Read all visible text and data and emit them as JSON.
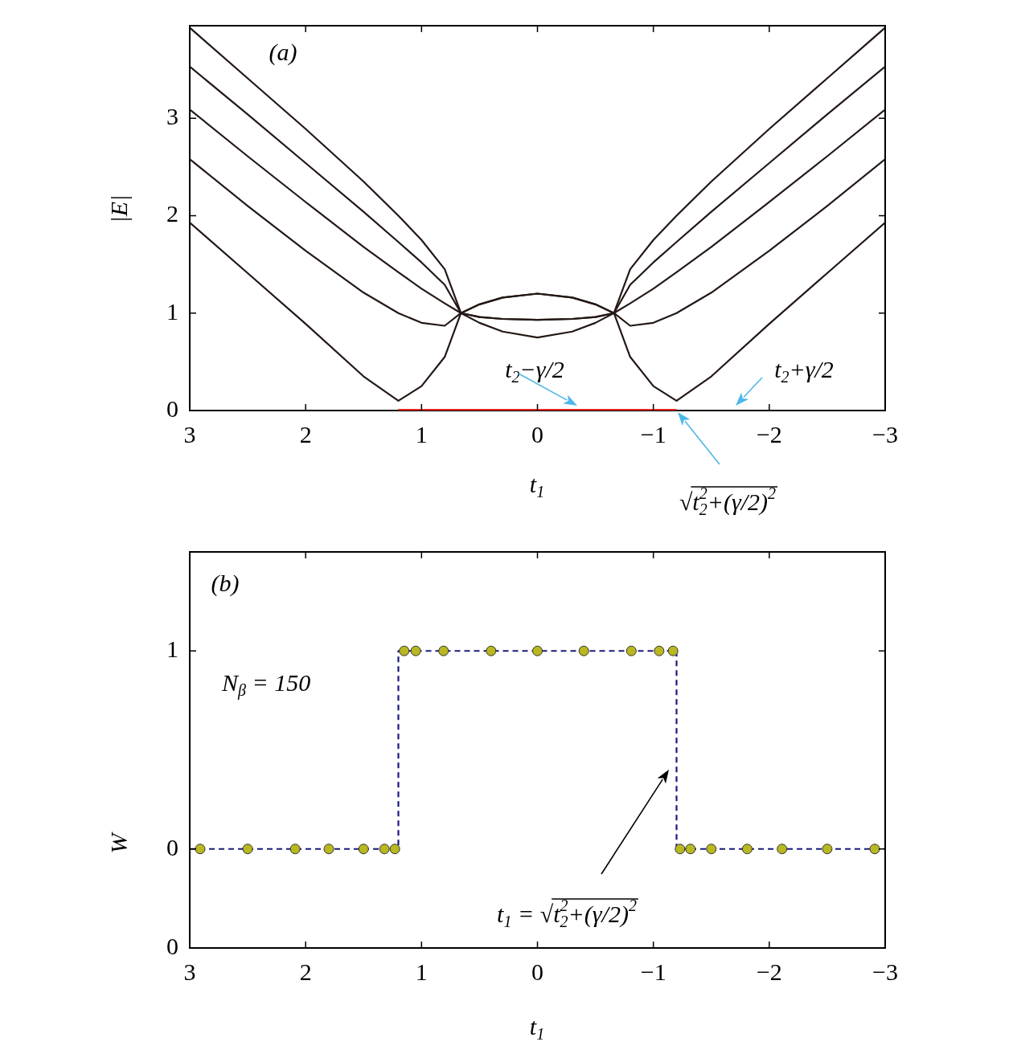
{
  "chart_data": [
    {
      "type": "line",
      "xlabel": "t$_{1}$",
      "ylabel": "|E|",
      "xlim": [
        3,
        -3
      ],
      "xticks": [
        3,
        2,
        1,
        0,
        -1,
        -2,
        -3
      ],
      "ylim": [
        0,
        3.95
      ],
      "yticks": [
        0,
        1,
        2,
        3
      ],
      "annotations": [
        "(a)",
        "t$_{2}$−γ/2",
        "t$_{2}$+γ/2",
        "√t$_{2}$$^{2}$+(γ/2)$^{2}$"
      ],
      "series": [
        {
          "color": "#231815",
          "x": [
            3,
            2.5,
            2,
            1.5,
            1.2,
            1,
            0.8,
            0.66,
            0.5,
            0.3,
            0,
            -0.3,
            -0.5,
            -0.66,
            -0.8,
            -1,
            -1.2,
            -1.5,
            -2,
            -2.5,
            -3
          ],
          "values": [
            3.93,
            3.41,
            2.89,
            2.35,
            2.0,
            1.75,
            1.45,
            1,
            1.09,
            1.16,
            1.2,
            1.16,
            1.09,
            1,
            1.45,
            1.75,
            2.0,
            2.35,
            2.89,
            3.41,
            3.93
          ]
        },
        {
          "color": "#231815",
          "x": [
            3,
            2.5,
            2,
            1.5,
            1.2,
            1,
            0.8,
            0.66,
            0.5,
            0.3,
            0,
            -0.3,
            -0.5,
            -0.66,
            -0.8,
            -1,
            -1.2,
            -1.5,
            -2,
            -2.5,
            -3
          ],
          "values": [
            3.53,
            3.04,
            2.54,
            2.04,
            1.73,
            1.52,
            1.29,
            1,
            0.96,
            0.94,
            0.93,
            0.94,
            0.96,
            1,
            1.29,
            1.52,
            1.73,
            2.04,
            2.54,
            3.04,
            3.53
          ]
        },
        {
          "color": "#231815",
          "x": [
            3,
            2.5,
            2,
            1.5,
            1.2,
            1,
            0.8,
            0.66,
            0.5,
            0.3,
            0,
            -0.3,
            -0.5,
            -0.66,
            -0.8,
            -1,
            -1.2,
            -1.5,
            -2,
            -2.5,
            -3
          ],
          "values": [
            3.09,
            2.61,
            2.14,
            1.68,
            1.42,
            1.25,
            1.1,
            1,
            0.9,
            0.81,
            0.75,
            0.81,
            0.9,
            1,
            1.1,
            1.25,
            1.42,
            1.68,
            2.14,
            2.61,
            3.09
          ]
        },
        {
          "color": "#231815",
          "x": [
            3,
            2.5,
            2,
            1.5,
            1.2,
            1,
            0.8,
            0.66,
            0.5,
            0.3,
            0,
            -0.3,
            -0.5,
            -0.66,
            -0.8,
            -1,
            -1.2,
            -1.5,
            -2,
            -2.5,
            -3
          ],
          "values": [
            2.58,
            2.1,
            1.64,
            1.21,
            1.0,
            0.9,
            0.87,
            1,
            0.96,
            0.94,
            0.93,
            0.94,
            0.96,
            1,
            0.87,
            0.9,
            1.0,
            1.21,
            1.64,
            2.1,
            2.58
          ]
        },
        {
          "color": "#231815",
          "x": [
            3,
            2.5,
            2,
            1.5,
            1.2,
            1,
            0.8,
            0.66,
            0.5,
            0.3,
            0,
            -0.3,
            -0.5,
            -0.66,
            -0.8,
            -1,
            -1.2,
            -1.5,
            -2,
            -2.5,
            -3
          ],
          "values": [
            1.93,
            1.41,
            0.89,
            0.35,
            0.1,
            0.25,
            0.55,
            1,
            1.09,
            1.16,
            1.2,
            1.16,
            1.09,
            1,
            0.55,
            0.25,
            0.1,
            0.35,
            0.89,
            1.41,
            1.93
          ]
        },
        {
          "color": "#e8251f",
          "x": [
            1.2,
            -1.2
          ],
          "values": [
            0,
            0
          ]
        }
      ]
    },
    {
      "type": "line",
      "xlabel": "t$_{1}$",
      "ylabel": "W",
      "xlim": [
        3,
        -3
      ],
      "xticks": [
        3,
        2,
        1,
        0,
        -1,
        -2,
        -3
      ],
      "ylim": [
        -0.5,
        1.5
      ],
      "yticks": [
        {
          "value": -0.5,
          "label": "0"
        },
        0,
        1
      ],
      "annotations": [
        "(b)",
        "N$_{β}$ = 150",
        "t$_{1}$ = √t$_{2}$$^{2}$+(γ/2)$^{2}$"
      ],
      "series": [
        {
          "type": "line",
          "line_style": "dashed",
          "color": "#1a1a80",
          "x": [
            3,
            1.2,
            1.2,
            -1.2,
            -1.2,
            -3
          ],
          "values": [
            0,
            0,
            1,
            1,
            0,
            0
          ]
        },
        {
          "type": "scatter",
          "marker": "circle",
          "color": "#b8b820",
          "x": [
            2.91,
            2.5,
            2.09,
            1.8,
            1.5,
            1.32,
            1.23,
            1.15,
            1.05,
            0.81,
            0.4,
            0,
            -0.4,
            -0.81,
            -1.05,
            -1.17,
            -1.23,
            -1.32,
            -1.5,
            -1.81,
            -2.11,
            -2.5,
            -2.91
          ],
          "values": [
            0,
            0,
            0,
            0,
            0,
            0,
            0,
            1,
            1,
            1,
            1,
            1,
            1,
            1,
            1,
            1,
            0,
            0,
            0,
            0,
            0,
            0,
            0
          ]
        }
      ]
    }
  ]
}
